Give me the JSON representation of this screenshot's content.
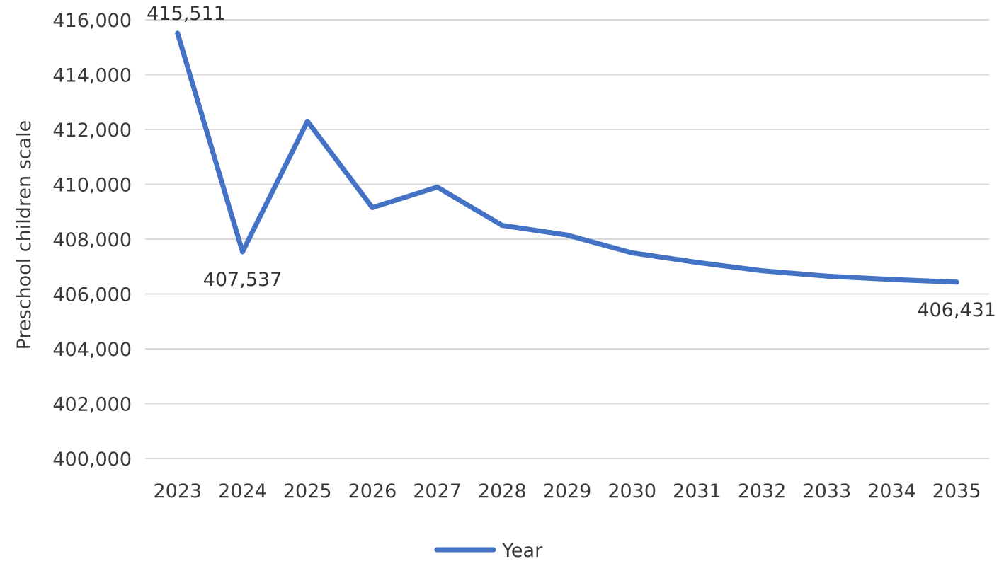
{
  "chart_data": {
    "type": "line",
    "title": "",
    "xlabel": "",
    "ylabel": "Preschool children scale",
    "ylim": [
      400000,
      416000
    ],
    "y_ticks": [
      400000,
      402000,
      404000,
      406000,
      408000,
      410000,
      412000,
      414000,
      416000
    ],
    "y_tick_labels": [
      "400,000",
      "402,000",
      "404,000",
      "406,000",
      "408,000",
      "410,000",
      "412,000",
      "414,000",
      "416,000"
    ],
    "categories": [
      "2023",
      "2024",
      "2025",
      "2026",
      "2027",
      "2028",
      "2029",
      "2030",
      "2031",
      "2032",
      "2033",
      "2034",
      "2035"
    ],
    "series": [
      {
        "name": "Year",
        "color": "#4472c4",
        "values": [
          415511,
          407537,
          412300,
          409150,
          409900,
          408500,
          408150,
          407500,
          407150,
          406850,
          406650,
          406530,
          406431
        ]
      }
    ],
    "data_labels": [
      {
        "index": 0,
        "text": "415,511",
        "position": "above"
      },
      {
        "index": 1,
        "text": "407,537",
        "position": "below"
      },
      {
        "index": 12,
        "text": "406,431",
        "position": "below"
      }
    ],
    "grid": true,
    "legend": {
      "placement": "bottom-center"
    }
  }
}
